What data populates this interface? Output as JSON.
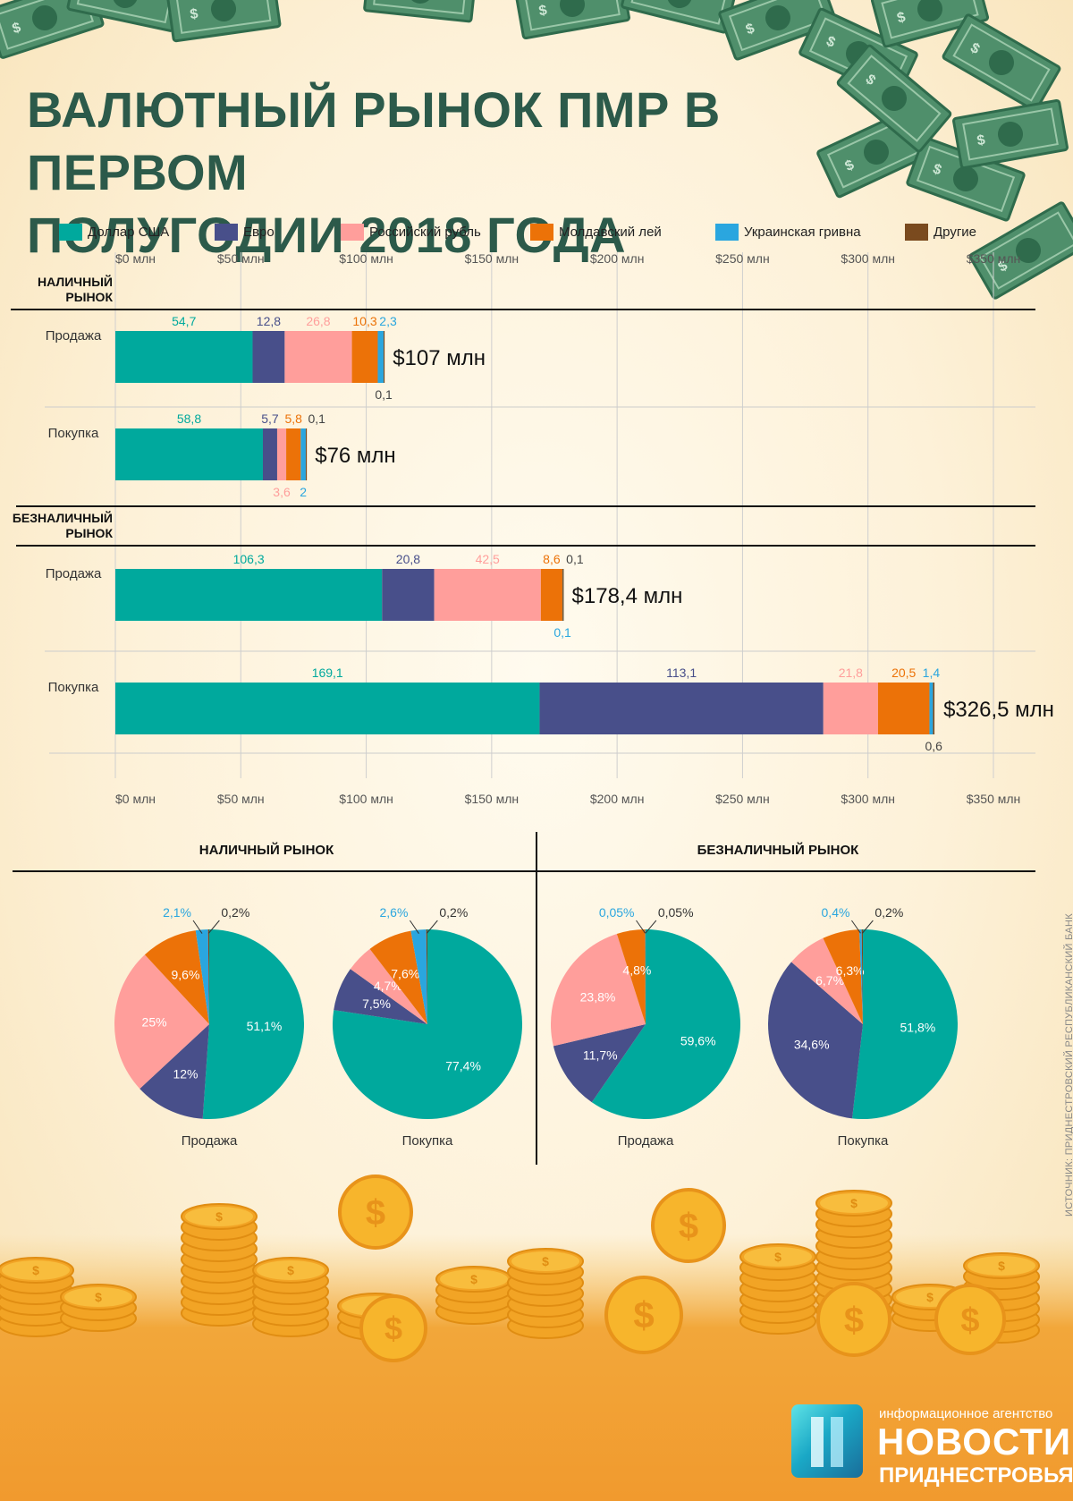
{
  "title_line1": "ВАЛЮТНЫЙ РЫНОК ПМР В ПЕРВОМ",
  "title_line2": "ПОЛУГОДИИ 2018 ГОДА",
  "colors": {
    "usd": "#00a99d",
    "eur": "#484f8a",
    "rub": "#ff9e9b",
    "mdl": "#ec7208",
    "uah": "#2aa6df",
    "other": "#7a4a1e",
    "title": "#2c5a4a"
  },
  "legend": [
    {
      "label": "Доллар США",
      "color": "#00a99d"
    },
    {
      "label": "Евро",
      "color": "#484f8a"
    },
    {
      "label": "Российский рубль",
      "color": "#ff9e9b"
    },
    {
      "label": "Молдавский лей",
      "color": "#ec7208"
    },
    {
      "label": "Украинская гривна",
      "color": "#2aa6df"
    },
    {
      "label": "Другие",
      "color": "#7a4a1e"
    }
  ],
  "sections": {
    "cash": "НАЛИЧНЫЙ РЫНОК",
    "noncash": "БЕЗНАЛИЧНЫЙ РЫНОК"
  },
  "source": "ИСТОЧНИК: ПРИДНЕСТРОВСКИЙ РЕСПУБЛИКАНСКИЙ БАНК",
  "logo": {
    "small": "информационное агентство",
    "big": "НОВОСТИ",
    "sub": "ПРИДНЕСТРОВЬЯ"
  },
  "chart_data": [
    {
      "type": "bar",
      "orientation": "horizontal-stacked",
      "xlim": [
        0,
        350
      ],
      "x_ticks": [
        "$0 млн",
        "$50 млн",
        "$100 млн",
        "$150 млн",
        "$200 млн",
        "$250 млн",
        "$300 млн",
        "$350 млн"
      ],
      "series_names": [
        "Доллар США",
        "Евро",
        "Российский рубль",
        "Молдавский лей",
        "Украинская гривна",
        "Другие"
      ],
      "groups": [
        {
          "section": "НАЛИЧНЫЙ РЫНОК",
          "rows": [
            {
              "label": "Продажа",
              "values": [
                54.7,
                12.8,
                26.8,
                10.3,
                2.3,
                0.1
              ],
              "value_labels": [
                "54,7",
                "12,8",
                "26,8",
                "10,3",
                "2,3",
                "0,1"
              ],
              "total_label": "$107 млн"
            },
            {
              "label": "Покупка",
              "values": [
                58.8,
                5.7,
                3.6,
                5.8,
                2,
                0.1
              ],
              "value_labels": [
                "58,8",
                "5,7",
                "3,6",
                "5,8",
                "2",
                "0,1"
              ],
              "total_label": "$76 млн"
            }
          ]
        },
        {
          "section": "БЕЗНАЛИЧНЫЙ РЫНОК",
          "rows": [
            {
              "label": "Продажа",
              "values": [
                106.3,
                20.8,
                42.5,
                8.6,
                0.1,
                0.1
              ],
              "value_labels": [
                "106,3",
                "20,8",
                "42,5",
                "8,6",
                "0,1",
                "0,1"
              ],
              "total_label": "$178,4 млн"
            },
            {
              "label": "Покупка",
              "values": [
                169.1,
                113.1,
                21.8,
                20.5,
                1.4,
                0.6
              ],
              "value_labels": [
                "169,1",
                "113,1",
                "21,8",
                "20,5",
                "1,4",
                "0,6"
              ],
              "total_label": "$326,5 млн"
            }
          ]
        }
      ]
    },
    {
      "type": "pie",
      "panels": [
        {
          "section": "НАЛИЧНЫЙ РЫНОК",
          "label": "Продажа",
          "values": [
            51.1,
            12,
            25,
            9.6,
            2.1,
            0.2
          ],
          "value_labels": [
            "51,1%",
            "12%",
            "25%",
            "9,6%",
            "2,1%",
            "0,2%"
          ]
        },
        {
          "section": "НАЛИЧНЫЙ РЫНОК",
          "label": "Покупка",
          "values": [
            77.4,
            7.5,
            4.7,
            7.6,
            2.6,
            0.2
          ],
          "value_labels": [
            "77,4%",
            "7,5%",
            "4,7%",
            "7,6%",
            "2,6%",
            "0,2%"
          ]
        },
        {
          "section": "БЕЗНАЛИЧНЫЙ РЫНОК",
          "label": "Продажа",
          "values": [
            59.6,
            11.7,
            23.8,
            4.8,
            0.05,
            0.05
          ],
          "value_labels": [
            "59,6%",
            "11,7%",
            "23,8%",
            "4,8%",
            "0,05%",
            "0,05%"
          ]
        },
        {
          "section": "БЕЗНАЛИЧНЫЙ РЫНОК",
          "label": "Покупка",
          "values": [
            51.8,
            34.6,
            6.7,
            6.3,
            0.4,
            0.2
          ],
          "value_labels": [
            "51,8%",
            "34,6%",
            "6,7%",
            "6,3%",
            "0,4%",
            "0,2%"
          ]
        }
      ]
    }
  ]
}
